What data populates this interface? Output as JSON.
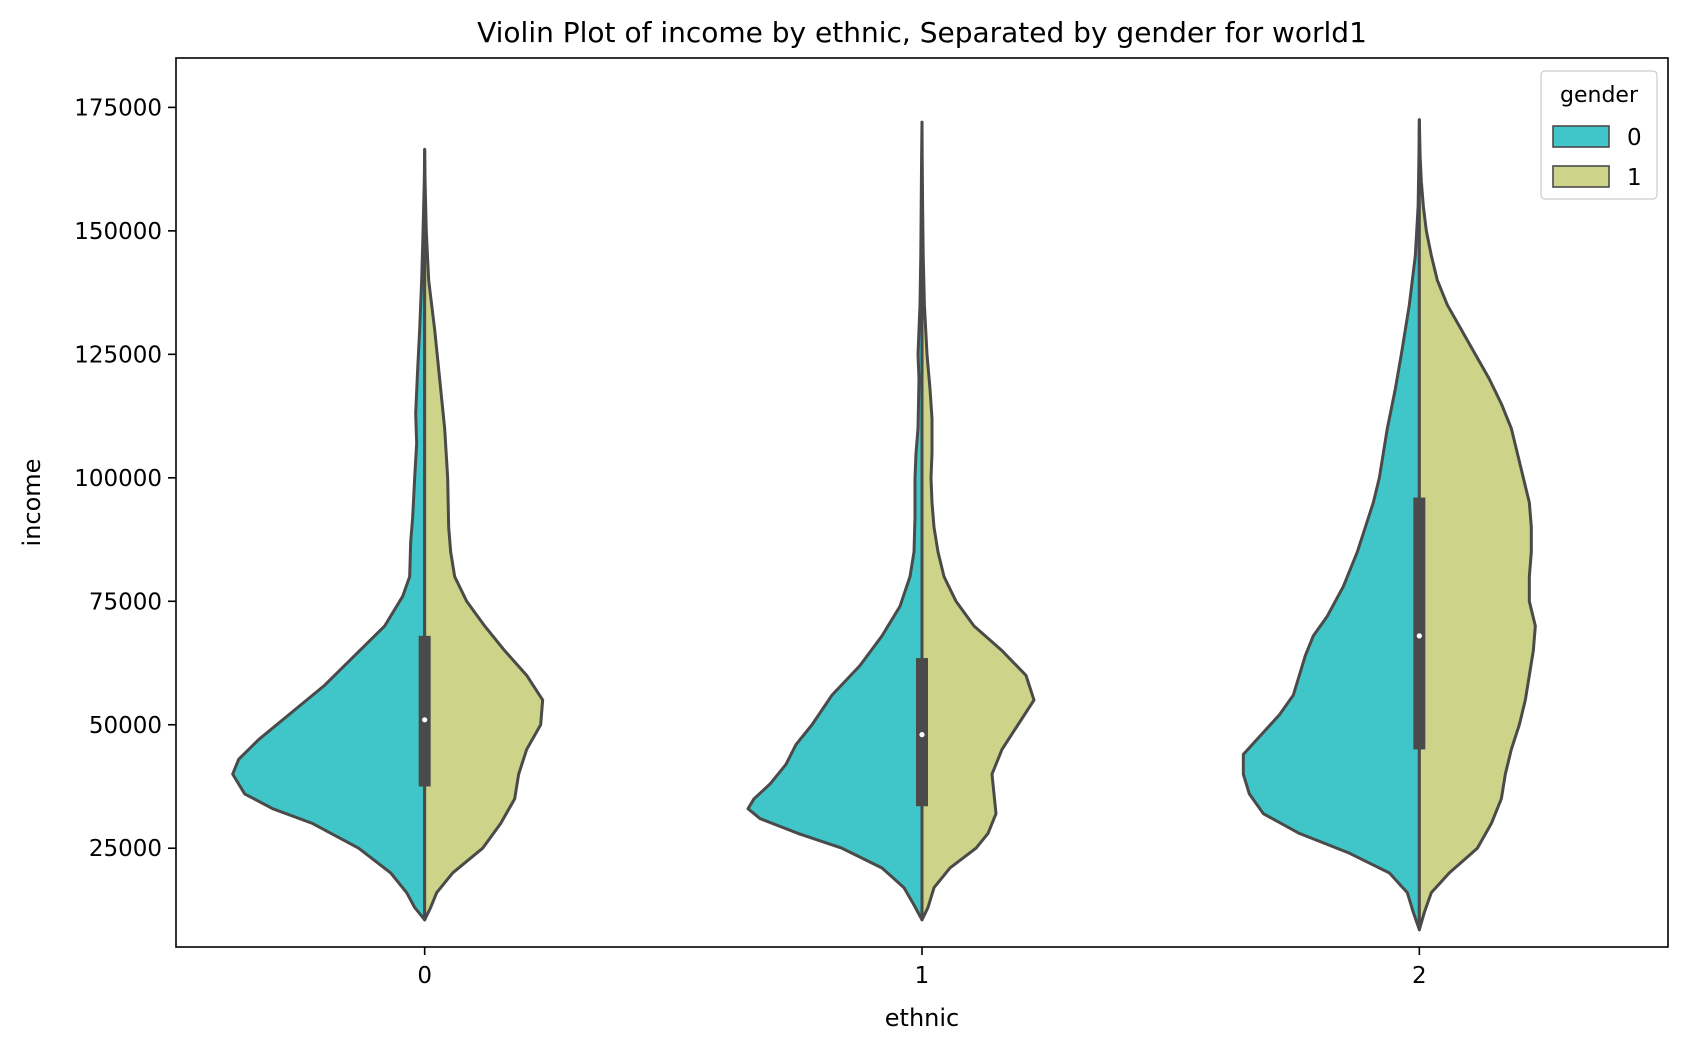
{
  "chart_data": {
    "type": "violin",
    "title": "Violin Plot of income by ethnic, Separated by gender for world1",
    "xlabel": "ethnic",
    "ylabel": "income",
    "categories": [
      "0",
      "1",
      "2"
    ],
    "ylim": [
      5000,
      185000
    ],
    "yticks": [
      25000,
      50000,
      75000,
      100000,
      125000,
      150000,
      175000
    ],
    "ytick_labels": [
      "25000",
      "50000",
      "75000",
      "100000",
      "125000",
      "150000",
      "175000"
    ],
    "split": true,
    "legend": {
      "title": "gender",
      "placement": "top-right",
      "entries": [
        "0",
        "1"
      ]
    },
    "series": [
      {
        "name": "0",
        "color": "#40c6c8",
        "side": "left",
        "profiles": [
          [
            [
              10500,
              0
            ],
            [
              13000,
              0.05
            ],
            [
              16000,
              0.09
            ],
            [
              20000,
              0.17
            ],
            [
              25000,
              0.33
            ],
            [
              30000,
              0.56
            ],
            [
              33000,
              0.76
            ],
            [
              36000,
              0.9
            ],
            [
              40000,
              0.96
            ],
            [
              43000,
              0.93
            ],
            [
              47000,
              0.83
            ],
            [
              52000,
              0.68
            ],
            [
              58000,
              0.5
            ],
            [
              64000,
              0.35
            ],
            [
              70000,
              0.2
            ],
            [
              76000,
              0.11
            ],
            [
              80000,
              0.075
            ],
            [
              87000,
              0.07
            ],
            [
              92000,
              0.06
            ],
            [
              100000,
              0.05
            ],
            [
              107000,
              0.04
            ],
            [
              113000,
              0.045
            ],
            [
              122000,
              0.035
            ],
            [
              130000,
              0.025
            ],
            [
              140000,
              0.015
            ],
            [
              150000,
              0.008
            ],
            [
              160000,
              0.002
            ],
            [
              166500,
              0
            ]
          ],
          [
            [
              10500,
              0
            ],
            [
              13500,
              0.04
            ],
            [
              17000,
              0.09
            ],
            [
              21000,
              0.2
            ],
            [
              25000,
              0.4
            ],
            [
              28000,
              0.62
            ],
            [
              31000,
              0.81
            ],
            [
              33000,
              0.87
            ],
            [
              35000,
              0.84
            ],
            [
              38000,
              0.76
            ],
            [
              42000,
              0.68
            ],
            [
              46000,
              0.63
            ],
            [
              50000,
              0.55
            ],
            [
              56000,
              0.45
            ],
            [
              62000,
              0.31
            ],
            [
              68000,
              0.2
            ],
            [
              74000,
              0.11
            ],
            [
              80000,
              0.06
            ],
            [
              85000,
              0.04
            ],
            [
              92000,
              0.035
            ],
            [
              100000,
              0.035
            ],
            [
              105000,
              0.03
            ],
            [
              110000,
              0.02
            ],
            [
              120000,
              0.015
            ],
            [
              125000,
              0.02
            ],
            [
              135000,
              0.01
            ],
            [
              145000,
              0.006
            ],
            [
              155000,
              0.004
            ],
            [
              165000,
              0.002
            ],
            [
              172000,
              0
            ]
          ],
          [
            [
              8500,
              0
            ],
            [
              12000,
              0.03
            ],
            [
              16000,
              0.06
            ],
            [
              20000,
              0.15
            ],
            [
              24000,
              0.35
            ],
            [
              28000,
              0.6
            ],
            [
              32000,
              0.78
            ],
            [
              36000,
              0.85
            ],
            [
              40000,
              0.88
            ],
            [
              44000,
              0.88
            ],
            [
              48000,
              0.79
            ],
            [
              52000,
              0.7
            ],
            [
              56000,
              0.63
            ],
            [
              60000,
              0.6
            ],
            [
              64000,
              0.57
            ],
            [
              68000,
              0.53
            ],
            [
              72000,
              0.46
            ],
            [
              78000,
              0.38
            ],
            [
              85000,
              0.31
            ],
            [
              90000,
              0.27
            ],
            [
              95000,
              0.23
            ],
            [
              100000,
              0.2
            ],
            [
              110000,
              0.16
            ],
            [
              118000,
              0.12
            ],
            [
              125000,
              0.09
            ],
            [
              135000,
              0.05
            ],
            [
              145000,
              0.02
            ],
            [
              155000,
              0.006
            ],
            [
              165000,
              0.002
            ],
            [
              172500,
              0
            ]
          ]
        ]
      },
      {
        "name": "1",
        "color": "#cdd388",
        "side": "right",
        "profiles": [
          [
            [
              10500,
              0
            ],
            [
              13000,
              0.03
            ],
            [
              16000,
              0.06
            ],
            [
              20000,
              0.14
            ],
            [
              25000,
              0.29
            ],
            [
              30000,
              0.38
            ],
            [
              35000,
              0.45
            ],
            [
              40000,
              0.47
            ],
            [
              45000,
              0.51
            ],
            [
              50000,
              0.58
            ],
            [
              55000,
              0.59
            ],
            [
              60000,
              0.51
            ],
            [
              65000,
              0.4
            ],
            [
              70000,
              0.3
            ],
            [
              75000,
              0.21
            ],
            [
              80000,
              0.15
            ],
            [
              85000,
              0.13
            ],
            [
              90000,
              0.12
            ],
            [
              100000,
              0.115
            ],
            [
              110000,
              0.1
            ],
            [
              120000,
              0.075
            ],
            [
              130000,
              0.05
            ],
            [
              140000,
              0.02
            ],
            [
              150000,
              0.008
            ],
            [
              160000,
              0.002
            ],
            [
              166500,
              0
            ]
          ],
          [
            [
              10500,
              0
            ],
            [
              13000,
              0.03
            ],
            [
              17000,
              0.06
            ],
            [
              21000,
              0.14
            ],
            [
              25000,
              0.27
            ],
            [
              28000,
              0.33
            ],
            [
              32000,
              0.37
            ],
            [
              36000,
              0.36
            ],
            [
              40000,
              0.35
            ],
            [
              45000,
              0.4
            ],
            [
              50000,
              0.48
            ],
            [
              55000,
              0.56
            ],
            [
              60000,
              0.52
            ],
            [
              65000,
              0.4
            ],
            [
              70000,
              0.26
            ],
            [
              75000,
              0.17
            ],
            [
              80000,
              0.11
            ],
            [
              85000,
              0.08
            ],
            [
              90000,
              0.06
            ],
            [
              95000,
              0.05
            ],
            [
              100000,
              0.045
            ],
            [
              105000,
              0.05
            ],
            [
              112000,
              0.05
            ],
            [
              118000,
              0.04
            ],
            [
              125000,
              0.025
            ],
            [
              135000,
              0.012
            ],
            [
              145000,
              0.006
            ],
            [
              155000,
              0.003
            ],
            [
              165000,
              0.001
            ],
            [
              172000,
              0
            ]
          ],
          [
            [
              8500,
              0
            ],
            [
              12000,
              0.025
            ],
            [
              16000,
              0.06
            ],
            [
              20000,
              0.15
            ],
            [
              25000,
              0.29
            ],
            [
              30000,
              0.36
            ],
            [
              35000,
              0.41
            ],
            [
              40000,
              0.43
            ],
            [
              45000,
              0.46
            ],
            [
              50000,
              0.5
            ],
            [
              55000,
              0.53
            ],
            [
              60000,
              0.55
            ],
            [
              65000,
              0.57
            ],
            [
              70000,
              0.58
            ],
            [
              75000,
              0.55
            ],
            [
              80000,
              0.55
            ],
            [
              85000,
              0.56
            ],
            [
              90000,
              0.56
            ],
            [
              95000,
              0.55
            ],
            [
              100000,
              0.52
            ],
            [
              105000,
              0.49
            ],
            [
              110000,
              0.46
            ],
            [
              115000,
              0.41
            ],
            [
              120000,
              0.35
            ],
            [
              125000,
              0.28
            ],
            [
              130000,
              0.21
            ],
            [
              135000,
              0.14
            ],
            [
              140000,
              0.09
            ],
            [
              145000,
              0.06
            ],
            [
              150000,
              0.035
            ],
            [
              155000,
              0.02
            ],
            [
              160000,
              0.01
            ],
            [
              165000,
              0.004
            ],
            [
              172500,
              0
            ]
          ]
        ]
      }
    ],
    "inner_box": [
      {
        "category": "0",
        "q1": 37500,
        "median": 51000,
        "q3": 68000
      },
      {
        "category": "1",
        "q1": 33500,
        "median": 48000,
        "q3": 63500
      },
      {
        "category": "2",
        "q1": 45000,
        "median": 68000,
        "q3": 96000
      }
    ]
  }
}
